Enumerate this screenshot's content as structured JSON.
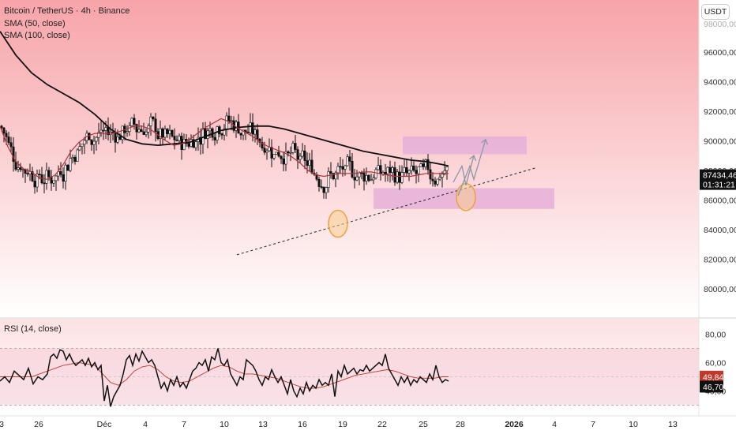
{
  "legend": {
    "title": "Bitcoin / TetherUS · 4h · Binance",
    "sma50": "SMA (50, close)",
    "sma100": "SMA (100, close)"
  },
  "currency_button": "USDT",
  "rsi_legend": "RSI (14, close)",
  "colors": {
    "bg_top": "#f7a4a9",
    "bg_bottom": "#ffffff",
    "candle_up": "#ffffff",
    "candle_down": "#111111",
    "sma50": "#b0323a",
    "sma100": "#111111",
    "zone": "#e6b3d8",
    "circle": "#f0a040",
    "arrow": "#8a97a8",
    "rsi_line": "#111111",
    "rsi_ma": "#c0392b"
  },
  "chart_data": [
    {
      "type": "candlestick",
      "ylim": [
        78500,
        98500
      ],
      "price_ticks": [
        "96000,00",
        "94000,00",
        "92000,00",
        "90000,00",
        "88000,00",
        "86000,00",
        "84000,00",
        "82000,00",
        "80000,00"
      ],
      "top_partial_tick": "98000,00",
      "x_tick_labels": [
        "3",
        "26",
        "Déc",
        "4",
        "7",
        "10",
        "13",
        "16",
        "19",
        "22",
        "25",
        "28",
        "2026",
        "4",
        "7",
        "10",
        "13"
      ],
      "last_price": "87434,46",
      "countdown": "01:31:21",
      "sma50_path": [
        [
          0,
          91000
        ],
        [
          10,
          89600
        ],
        [
          20,
          88600
        ],
        [
          30,
          88100
        ],
        [
          40,
          87900
        ],
        [
          50,
          87500
        ],
        [
          60,
          87400
        ],
        [
          70,
          87700
        ],
        [
          80,
          88400
        ],
        [
          90,
          89300
        ],
        [
          100,
          89900
        ],
        [
          110,
          90300
        ],
        [
          120,
          90500
        ],
        [
          130,
          90500
        ],
        [
          140,
          90500
        ],
        [
          150,
          90600
        ],
        [
          160,
          90800
        ],
        [
          170,
          91000
        ],
        [
          180,
          91000
        ],
        [
          190,
          90800
        ],
        [
          200,
          90400
        ],
        [
          210,
          90000
        ],
        [
          220,
          89700
        ],
        [
          230,
          89800
        ],
        [
          240,
          90100
        ],
        [
          250,
          90500
        ],
        [
          260,
          90900
        ],
        [
          270,
          91200
        ],
        [
          280,
          91500
        ],
        [
          290,
          91300
        ],
        [
          300,
          90900
        ],
        [
          310,
          90600
        ],
        [
          320,
          90300
        ],
        [
          330,
          89900
        ],
        [
          340,
          89600
        ],
        [
          350,
          89400
        ],
        [
          360,
          89200
        ],
        [
          370,
          88900
        ],
        [
          380,
          88500
        ],
        [
          390,
          88000
        ],
        [
          400,
          87700
        ],
        [
          410,
          87600
        ],
        [
          420,
          87700
        ],
        [
          430,
          87800
        ],
        [
          440,
          87800
        ],
        [
          450,
          87800
        ],
        [
          460,
          87900
        ],
        [
          470,
          87900
        ],
        [
          480,
          87800
        ],
        [
          490,
          87700
        ],
        [
          500,
          87600
        ],
        [
          510,
          87600
        ],
        [
          520,
          87600
        ],
        [
          530,
          87700
        ],
        [
          540,
          87800
        ],
        [
          550,
          87800
        ],
        [
          560,
          87800
        ],
        [
          568,
          87800
        ]
      ],
      "sma100_path": [
        [
          0,
          97400
        ],
        [
          20,
          95800
        ],
        [
          40,
          94600
        ],
        [
          60,
          93800
        ],
        [
          80,
          93200
        ],
        [
          100,
          92600
        ],
        [
          120,
          91800
        ],
        [
          140,
          90800
        ],
        [
          160,
          90100
        ],
        [
          180,
          89800
        ],
        [
          200,
          89700
        ],
        [
          220,
          89800
        ],
        [
          240,
          89900
        ],
        [
          260,
          90300
        ],
        [
          280,
          90700
        ],
        [
          300,
          90900
        ],
        [
          320,
          91000
        ],
        [
          340,
          91000
        ],
        [
          360,
          90800
        ],
        [
          380,
          90500
        ],
        [
          400,
          90200
        ],
        [
          420,
          89900
        ],
        [
          440,
          89600
        ],
        [
          460,
          89300
        ],
        [
          480,
          89100
        ],
        [
          500,
          88900
        ],
        [
          520,
          88700
        ],
        [
          540,
          88600
        ],
        [
          560,
          88400
        ],
        [
          568,
          88300
        ]
      ],
      "trendline": {
        "from": [
          300,
          82300
        ],
        "to": [
          680,
          88200
        ]
      },
      "zones": [
        {
          "x1": 510,
          "x2": 667,
          "y_low": 89100,
          "y_high": 90300
        },
        {
          "x1": 473,
          "x2": 702,
          "y_low": 85400,
          "y_high": 86800
        }
      ],
      "highlight_circles": [
        {
          "x": 428,
          "y": 84400
        },
        {
          "x": 590,
          "y": 86200
        }
      ],
      "projection_paths": [
        [
          [
            574,
            87200
          ],
          [
            585,
            88300
          ],
          [
            590,
            87000
          ],
          [
            600,
            89000
          ]
        ],
        [
          [
            580,
            86300
          ],
          [
            595,
            88300
          ],
          [
            600,
            87400
          ],
          [
            615,
            90100
          ]
        ]
      ]
    },
    {
      "type": "line",
      "title": "RSI (14, close)",
      "ylim": [
        25,
        85
      ],
      "y_ticks": [
        "80,00",
        "60,00",
        "40,00"
      ],
      "band": [
        30,
        70
      ],
      "mid": 50,
      "x_tick_labels": [
        "3",
        "26",
        "Déc",
        "4",
        "7",
        "10",
        "13",
        "16",
        "19",
        "22",
        "25",
        "28",
        "2026",
        "4",
        "7",
        "10",
        "13"
      ],
      "rsi_ma_value": "49,84",
      "rsi_value": "46,70",
      "rsi_path": [
        [
          0,
          47
        ],
        [
          6,
          50
        ],
        [
          12,
          46
        ],
        [
          18,
          54
        ],
        [
          24,
          51
        ],
        [
          30,
          48
        ],
        [
          36,
          56
        ],
        [
          42,
          45
        ],
        [
          48,
          50
        ],
        [
          54,
          48
        ],
        [
          60,
          52
        ],
        [
          64,
          64
        ],
        [
          68,
          66
        ],
        [
          72,
          63
        ],
        [
          76,
          69
        ],
        [
          80,
          68
        ],
        [
          84,
          62
        ],
        [
          88,
          66
        ],
        [
          92,
          61
        ],
        [
          96,
          58
        ],
        [
          100,
          60
        ],
        [
          104,
          62
        ],
        [
          108,
          58
        ],
        [
          112,
          63
        ],
        [
          116,
          57
        ],
        [
          120,
          60
        ],
        [
          124,
          55
        ],
        [
          128,
          58
        ],
        [
          132,
          33
        ],
        [
          136,
          44
        ],
        [
          140,
          29
        ],
        [
          144,
          36
        ],
        [
          148,
          40
        ],
        [
          152,
          44
        ],
        [
          156,
          52
        ],
        [
          160,
          62
        ],
        [
          164,
          65
        ],
        [
          168,
          58
        ],
        [
          172,
          66
        ],
        [
          176,
          61
        ],
        [
          180,
          68
        ],
        [
          184,
          64
        ],
        [
          188,
          60
        ],
        [
          192,
          62
        ],
        [
          196,
          58
        ],
        [
          200,
          50
        ],
        [
          204,
          42
        ],
        [
          208,
          46
        ],
        [
          212,
          40
        ],
        [
          216,
          48
        ],
        [
          220,
          44
        ],
        [
          224,
          50
        ],
        [
          228,
          43
        ],
        [
          232,
          46
        ],
        [
          236,
          42
        ],
        [
          240,
          48
        ],
        [
          244,
          54
        ],
        [
          248,
          56
        ],
        [
          252,
          60
        ],
        [
          256,
          58
        ],
        [
          260,
          62
        ],
        [
          264,
          54
        ],
        [
          268,
          64
        ],
        [
          272,
          62
        ],
        [
          276,
          70
        ],
        [
          280,
          60
        ],
        [
          284,
          58
        ],
        [
          288,
          62
        ],
        [
          292,
          52
        ],
        [
          296,
          48
        ],
        [
          300,
          44
        ],
        [
          304,
          50
        ],
        [
          308,
          48
        ],
        [
          312,
          62
        ],
        [
          316,
          60
        ],
        [
          320,
          58
        ],
        [
          324,
          54
        ],
        [
          328,
          48
        ],
        [
          332,
          44
        ],
        [
          336,
          50
        ],
        [
          340,
          48
        ],
        [
          344,
          55
        ],
        [
          348,
          50
        ],
        [
          352,
          46
        ],
        [
          356,
          50
        ],
        [
          360,
          44
        ],
        [
          364,
          38
        ],
        [
          368,
          48
        ],
        [
          372,
          40
        ],
        [
          376,
          36
        ],
        [
          380,
          42
        ],
        [
          384,
          38
        ],
        [
          388,
          46
        ],
        [
          392,
          40
        ],
        [
          396,
          44
        ],
        [
          400,
          42
        ],
        [
          404,
          48
        ],
        [
          408,
          44
        ],
        [
          412,
          46
        ],
        [
          416,
          44
        ],
        [
          420,
          52
        ],
        [
          424,
          36
        ],
        [
          428,
          54
        ],
        [
          432,
          50
        ],
        [
          436,
          58
        ],
        [
          440,
          52
        ],
        [
          444,
          54
        ],
        [
          448,
          56
        ],
        [
          452,
          52
        ],
        [
          456,
          55
        ],
        [
          460,
          54
        ],
        [
          464,
          58
        ],
        [
          468,
          54
        ],
        [
          472,
          56
        ],
        [
          476,
          58
        ],
        [
          480,
          60
        ],
        [
          484,
          58
        ],
        [
          488,
          66
        ],
        [
          492,
          56
        ],
        [
          496,
          52
        ],
        [
          500,
          48
        ],
        [
          504,
          44
        ],
        [
          508,
          50
        ],
        [
          512,
          46
        ],
        [
          516,
          50
        ],
        [
          520,
          44
        ],
        [
          524,
          48
        ],
        [
          528,
          46
        ],
        [
          532,
          50
        ],
        [
          536,
          48
        ],
        [
          540,
          46
        ],
        [
          544,
          52
        ],
        [
          548,
          48
        ],
        [
          552,
          58
        ],
        [
          556,
          50
        ],
        [
          560,
          46
        ],
        [
          564,
          48
        ],
        [
          568,
          47
        ]
      ],
      "rsi_ma_path": [
        [
          0,
          50
        ],
        [
          20,
          50
        ],
        [
          40,
          50
        ],
        [
          60,
          54
        ],
        [
          80,
          58
        ],
        [
          100,
          60
        ],
        [
          120,
          58
        ],
        [
          130,
          52
        ],
        [
          140,
          46
        ],
        [
          150,
          44
        ],
        [
          160,
          48
        ],
        [
          170,
          54
        ],
        [
          180,
          57
        ],
        [
          190,
          58
        ],
        [
          200,
          55
        ],
        [
          210,
          50
        ],
        [
          220,
          47
        ],
        [
          230,
          46
        ],
        [
          240,
          47
        ],
        [
          250,
          50
        ],
        [
          260,
          53
        ],
        [
          270,
          56
        ],
        [
          280,
          58
        ],
        [
          290,
          57
        ],
        [
          300,
          54
        ],
        [
          310,
          52
        ],
        [
          320,
          52
        ],
        [
          330,
          51
        ],
        [
          340,
          50
        ],
        [
          350,
          49
        ],
        [
          360,
          47
        ],
        [
          370,
          45
        ],
        [
          380,
          43
        ],
        [
          390,
          42
        ],
        [
          400,
          42
        ],
        [
          410,
          43
        ],
        [
          420,
          45
        ],
        [
          430,
          47
        ],
        [
          440,
          49
        ],
        [
          450,
          51
        ],
        [
          460,
          52
        ],
        [
          470,
          53
        ],
        [
          480,
          54
        ],
        [
          490,
          55
        ],
        [
          500,
          54
        ],
        [
          510,
          52
        ],
        [
          520,
          50
        ],
        [
          530,
          49
        ],
        [
          540,
          49
        ],
        [
          550,
          49
        ],
        [
          560,
          50
        ],
        [
          568,
          50
        ]
      ]
    }
  ]
}
